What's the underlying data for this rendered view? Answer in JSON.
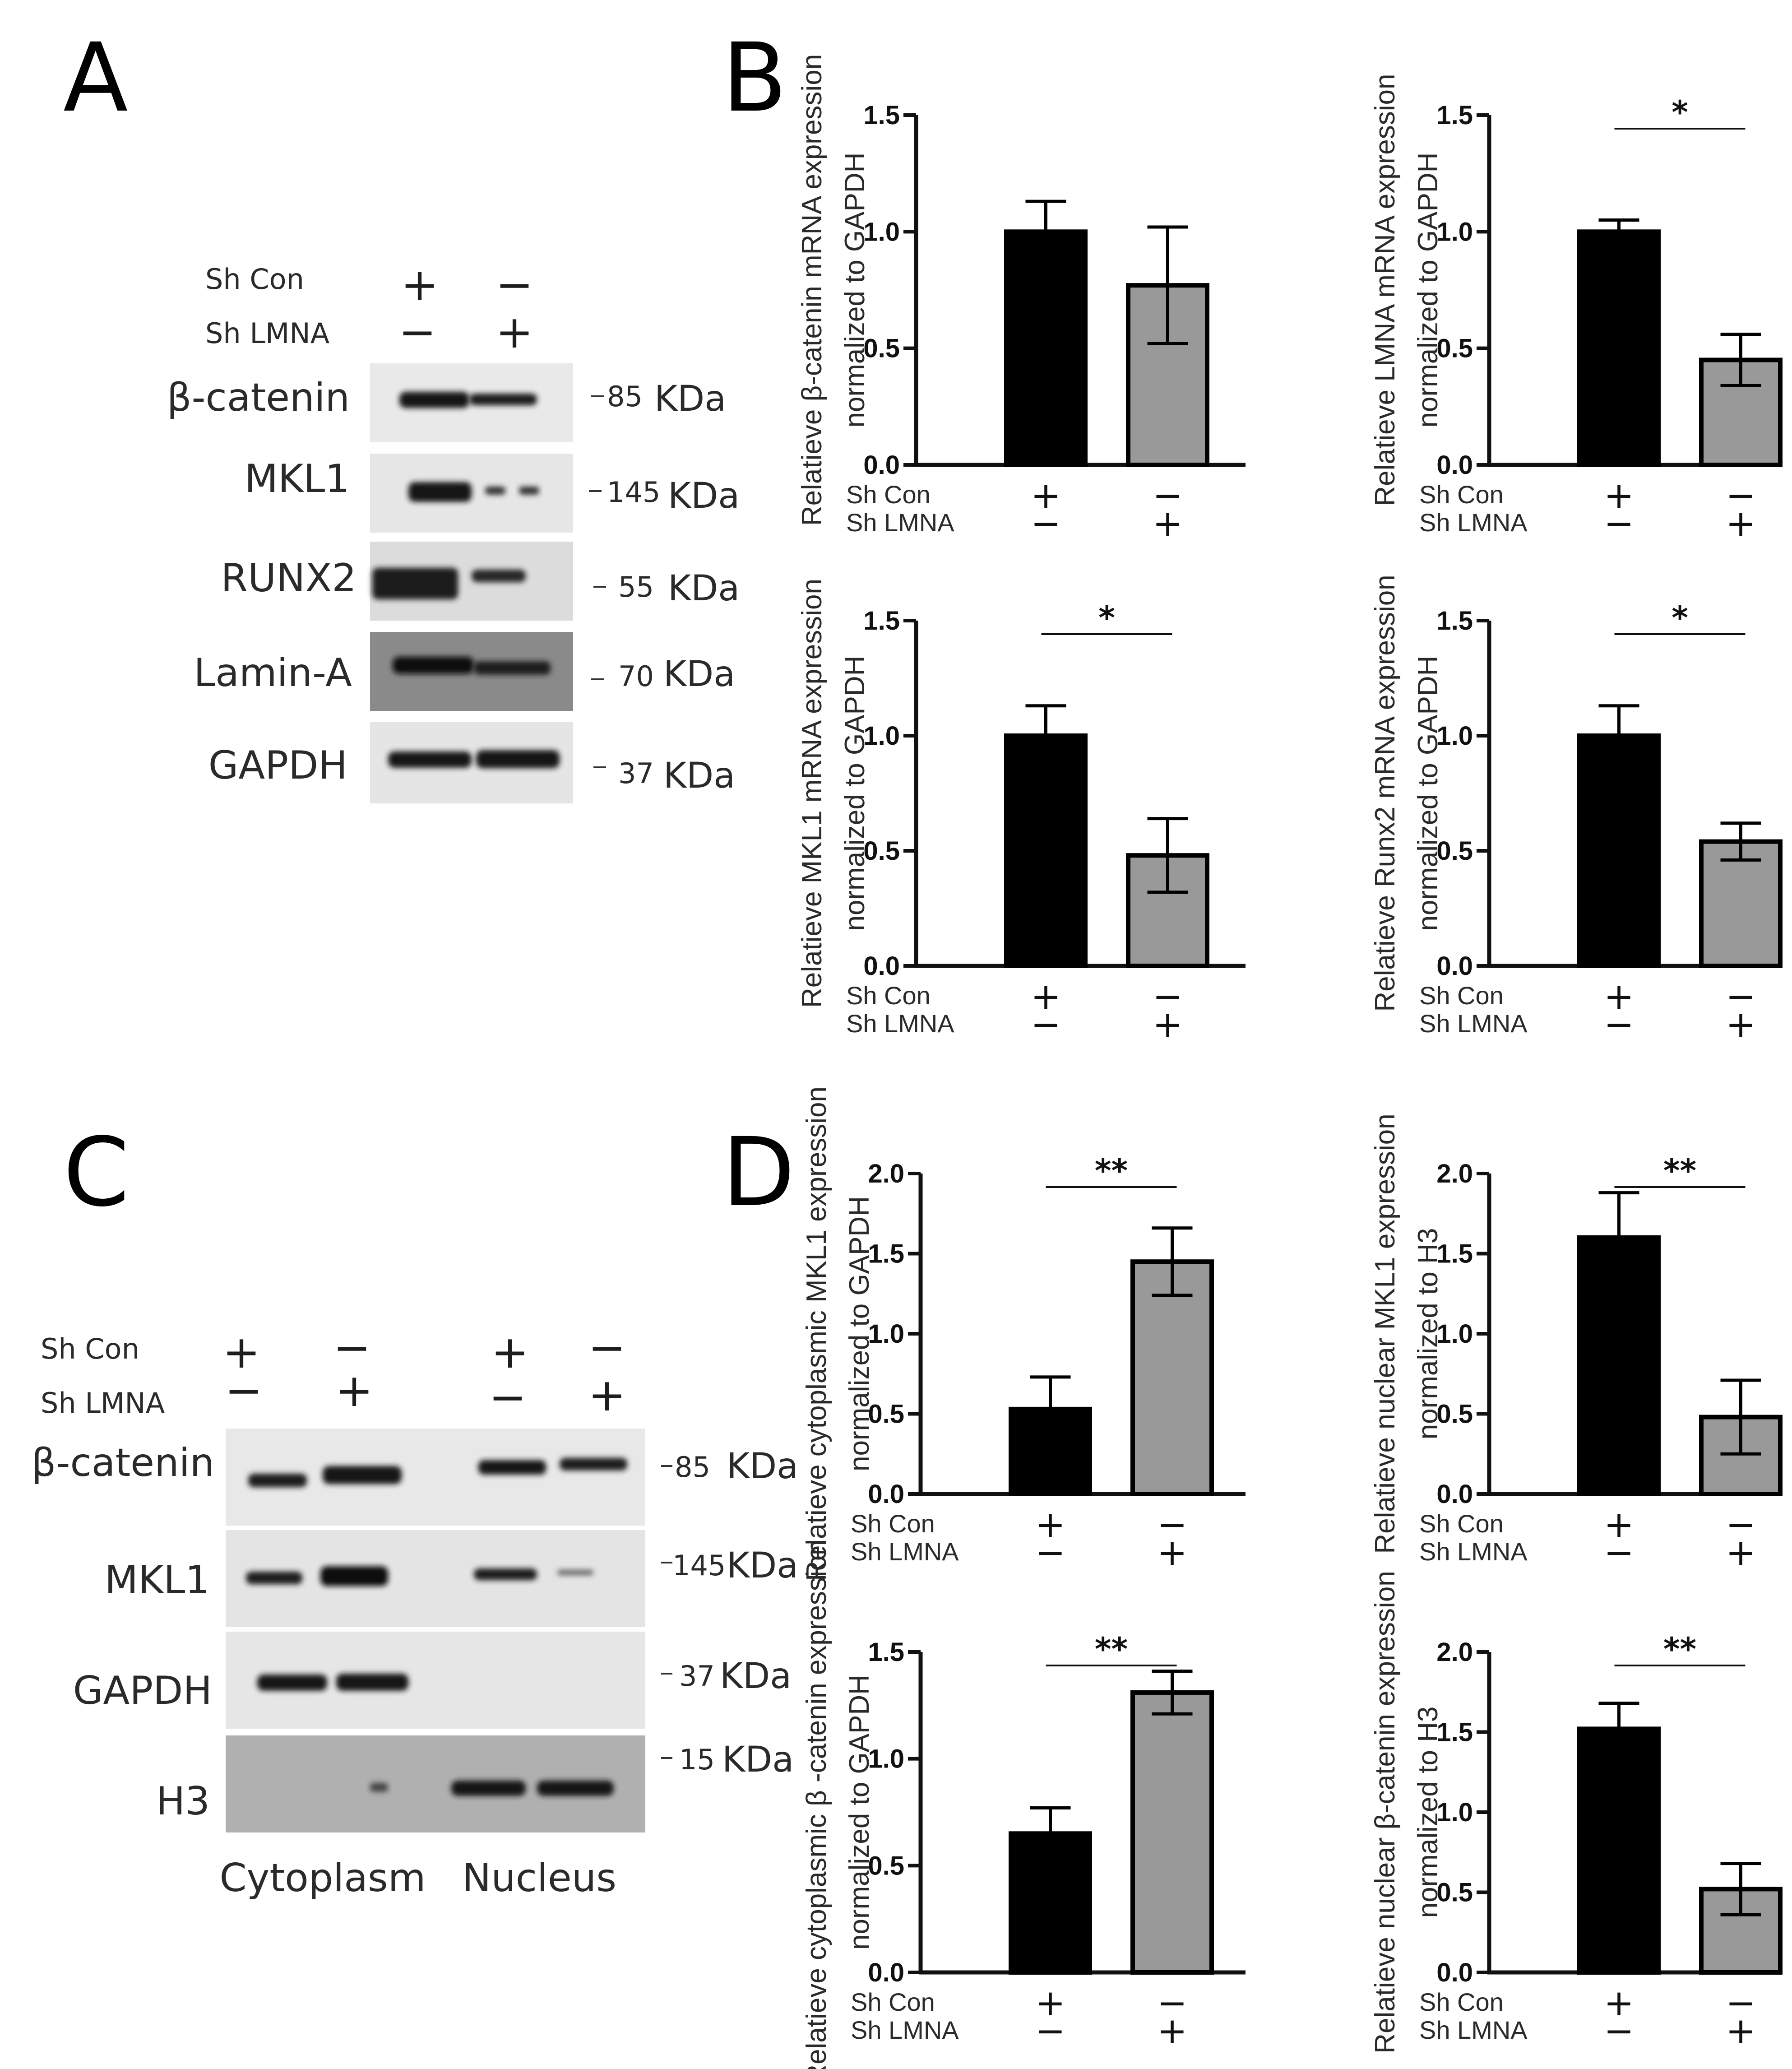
{
  "panel_letters": {
    "a": "A",
    "b": "B",
    "c": "C",
    "d": "D"
  },
  "panel_a": {
    "conditions": [
      {
        "label": "Sh Con",
        "lane1": "+",
        "lane2": "−"
      },
      {
        "label": "Sh LMNA",
        "lane1": "−",
        "lane2": "+"
      }
    ],
    "blots": [
      {
        "protein": "β-catenin",
        "mw": "85",
        "unit": "KDa"
      },
      {
        "protein": "MKL1",
        "mw": "145",
        "unit": "KDa"
      },
      {
        "protein": "RUNX2",
        "mw": "55",
        "unit": "KDa"
      },
      {
        "protein": "Lamin-A",
        "mw": "70",
        "unit": "KDa"
      },
      {
        "protein": "GAPDH",
        "mw": "37",
        "unit": "KDa"
      }
    ]
  },
  "panel_c": {
    "conditions": [
      {
        "label": "Sh Con",
        "signs": [
          "+",
          "−",
          "+",
          "−"
        ]
      },
      {
        "label": "Sh LMNA",
        "signs": [
          "−",
          "+",
          "−",
          "+"
        ]
      }
    ],
    "blots": [
      {
        "protein": "β-catenin",
        "mw": "85",
        "unit": "KDa"
      },
      {
        "protein": "MKL1",
        "mw": "145",
        "unit": "KDa"
      },
      {
        "protein": "GAPDH",
        "mw": "37",
        "unit": "KDa"
      },
      {
        "protein": "H3",
        "mw": "15",
        "unit": "KDa"
      }
    ],
    "fractions": [
      "Cytoplasm",
      "Nucleus"
    ]
  },
  "chart_data": [
    {
      "type": "bar",
      "panel": "B",
      "categories": [
        "Sh Con",
        "Sh LMNA"
      ],
      "values": [
        1.0,
        0.77
      ],
      "errors": [
        0.13,
        0.25
      ],
      "ylabel_lines": [
        "Relatieve β-catenin mRNA  expression",
        "normalized to  GAPDH"
      ],
      "ylim": [
        0,
        1.5
      ],
      "yticks": [
        "0.0",
        "0.5",
        "1.0",
        "1.5"
      ],
      "significance": "",
      "xrows": [
        {
          "label": "Sh Con",
          "signs": [
            "+",
            "−"
          ]
        },
        {
          "label": "Sh LMNA",
          "signs": [
            "−",
            "+"
          ]
        }
      ],
      "colors": [
        "#000000",
        "#999999"
      ]
    },
    {
      "type": "bar",
      "panel": "B",
      "categories": [
        "Sh Con",
        "Sh LMNA"
      ],
      "values": [
        1.0,
        0.45
      ],
      "errors": [
        0.05,
        0.11
      ],
      "ylabel_lines": [
        "Relatieve LMNA mRNA  expression",
        "normalized to  GAPDH"
      ],
      "ylim": [
        0,
        1.5
      ],
      "yticks": [
        "0.0",
        "0.5",
        "1.0",
        "1.5"
      ],
      "significance": "*",
      "xrows": [
        {
          "label": "Sh Con",
          "signs": [
            "+",
            "−"
          ]
        },
        {
          "label": "Sh LMNA",
          "signs": [
            "−",
            "+"
          ]
        }
      ],
      "colors": [
        "#000000",
        "#999999"
      ]
    },
    {
      "type": "bar",
      "panel": "B",
      "categories": [
        "Sh Con",
        "Sh LMNA"
      ],
      "values": [
        1.0,
        0.48
      ],
      "errors": [
        0.13,
        0.16
      ],
      "ylabel_lines": [
        "Relatieve MKL1 mRNA  expression",
        "normalized to  GAPDH"
      ],
      "ylim": [
        0,
        1.5
      ],
      "yticks": [
        "0.0",
        "0.5",
        "1.0",
        "1.5"
      ],
      "significance": "*",
      "xrows": [
        {
          "label": "Sh Con",
          "signs": [
            "+",
            "−"
          ]
        },
        {
          "label": "Sh LMNA",
          "signs": [
            "−",
            "+"
          ]
        }
      ],
      "colors": [
        "#000000",
        "#999999"
      ]
    },
    {
      "type": "bar",
      "panel": "B",
      "categories": [
        "Sh Con",
        "Sh LMNA"
      ],
      "values": [
        1.0,
        0.54
      ],
      "errors": [
        0.13,
        0.08
      ],
      "ylabel_lines": [
        "Relatieve Runx2 mRNA  expression",
        "normalized to  GAPDH"
      ],
      "ylim": [
        0,
        1.5
      ],
      "yticks": [
        "0.0",
        "0.5",
        "1.0",
        "1.5"
      ],
      "significance": "*",
      "xrows": [
        {
          "label": "Sh Con",
          "signs": [
            "+",
            "−"
          ]
        },
        {
          "label": "Sh LMNA",
          "signs": [
            "−",
            "+"
          ]
        }
      ],
      "colors": [
        "#000000",
        "#999999"
      ]
    },
    {
      "type": "bar",
      "panel": "D",
      "categories": [
        "Sh Con",
        "Sh LMNA"
      ],
      "values": [
        0.53,
        1.45
      ],
      "errors": [
        0.2,
        0.21
      ],
      "ylabel_lines": [
        "Relatieve cytoplasmic MKL1 expression",
        "normalized to GAPDH"
      ],
      "ylim": [
        0,
        2.0
      ],
      "yticks": [
        "0.0",
        "0.5",
        "1.0",
        "1.5",
        "2.0"
      ],
      "significance": "**",
      "xrows": [
        {
          "label": "Sh Con",
          "signs": [
            "+",
            "−"
          ]
        },
        {
          "label": "Sh LMNA",
          "signs": [
            "−",
            "+"
          ]
        }
      ],
      "colors": [
        "#000000",
        "#999999"
      ]
    },
    {
      "type": "bar",
      "panel": "D",
      "categories": [
        "Sh Con",
        "Sh LMNA"
      ],
      "values": [
        1.6,
        0.48
      ],
      "errors": [
        0.28,
        0.23
      ],
      "ylabel_lines": [
        "Relatieve nuclear MKL1 expression",
        "normalized to  H3"
      ],
      "ylim": [
        0,
        2.0
      ],
      "yticks": [
        "0.0",
        "0.5",
        "1.0",
        "1.5",
        "2.0"
      ],
      "significance": "**",
      "xrows": [
        {
          "label": "Sh Con",
          "signs": [
            "+",
            "−"
          ]
        },
        {
          "label": "Sh LMNA",
          "signs": [
            "−",
            "+"
          ]
        }
      ],
      "colors": [
        "#000000",
        "#999999"
      ]
    },
    {
      "type": "bar",
      "panel": "D",
      "categories": [
        "Sh Con",
        "Sh LMNA"
      ],
      "values": [
        0.65,
        1.31
      ],
      "errors": [
        0.12,
        0.1
      ],
      "ylabel_lines": [
        "Relatieve cytoplasmic β -catenin expression",
        "normalized to  GAPDH"
      ],
      "ylim": [
        0,
        1.5
      ],
      "yticks": [
        "0.0",
        "0.5",
        "1.0",
        "1.5"
      ],
      "significance": "**",
      "xrows": [
        {
          "label": "Sh Con",
          "signs": [
            "+",
            "−"
          ]
        },
        {
          "label": "Sh LMNA",
          "signs": [
            "−",
            "+"
          ]
        }
      ],
      "colors": [
        "#000000",
        "#999999"
      ]
    },
    {
      "type": "bar",
      "panel": "D",
      "categories": [
        "Sh Con",
        "Sh LMNA"
      ],
      "values": [
        1.52,
        0.52
      ],
      "errors": [
        0.16,
        0.16
      ],
      "ylabel_lines": [
        "Relatieve nuclear β-catenin expression",
        "normalized to  H3"
      ],
      "ylim": [
        0,
        2.0
      ],
      "yticks": [
        "0.0",
        "0.5",
        "1.0",
        "1.5",
        "2.0"
      ],
      "significance": "**",
      "xrows": [
        {
          "label": "Sh Con",
          "signs": [
            "+",
            "−"
          ]
        },
        {
          "label": "Sh LMNA",
          "signs": [
            "−",
            "+"
          ]
        }
      ],
      "colors": [
        "#000000",
        "#999999"
      ]
    }
  ]
}
